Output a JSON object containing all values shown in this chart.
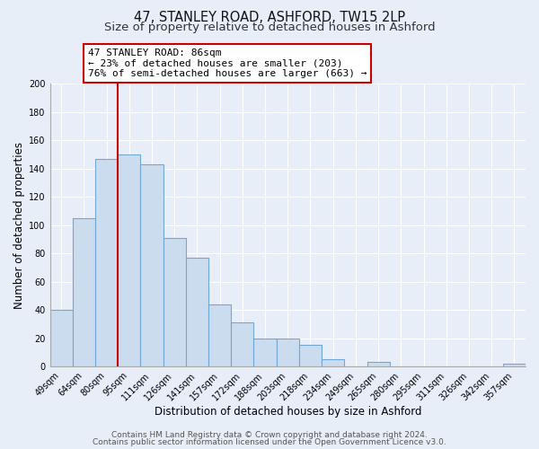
{
  "title": "47, STANLEY ROAD, ASHFORD, TW15 2LP",
  "subtitle": "Size of property relative to detached houses in Ashford",
  "xlabel": "Distribution of detached houses by size in Ashford",
  "ylabel": "Number of detached properties",
  "bar_labels": [
    "49sqm",
    "64sqm",
    "80sqm",
    "95sqm",
    "111sqm",
    "126sqm",
    "141sqm",
    "157sqm",
    "172sqm",
    "188sqm",
    "203sqm",
    "218sqm",
    "234sqm",
    "249sqm",
    "265sqm",
    "280sqm",
    "295sqm",
    "311sqm",
    "326sqm",
    "342sqm",
    "357sqm"
  ],
  "bar_values": [
    40,
    105,
    147,
    150,
    143,
    91,
    77,
    44,
    31,
    20,
    20,
    15,
    5,
    0,
    3,
    0,
    0,
    0,
    0,
    0,
    2
  ],
  "bar_color": "#ccdcef",
  "bar_edge_color": "#6fa8d6",
  "vline_index": 2.5,
  "vline_color": "#cc0000",
  "annotation_text_line1": "47 STANLEY ROAD: 86sqm",
  "annotation_text_line2": "← 23% of detached houses are smaller (203)",
  "annotation_text_line3": "76% of semi-detached houses are larger (663) →",
  "ylim": [
    0,
    200
  ],
  "yticks": [
    0,
    20,
    40,
    60,
    80,
    100,
    120,
    140,
    160,
    180,
    200
  ],
  "footer_line1": "Contains HM Land Registry data © Crown copyright and database right 2024.",
  "footer_line2": "Contains public sector information licensed under the Open Government Licence v3.0.",
  "bg_color": "#e8eef8",
  "plot_bg_color": "#e8eef8",
  "grid_color": "#ffffff",
  "title_fontsize": 10.5,
  "subtitle_fontsize": 9.5,
  "axis_label_fontsize": 8.5,
  "tick_fontsize": 7,
  "annotation_fontsize": 8,
  "footer_fontsize": 6.5
}
